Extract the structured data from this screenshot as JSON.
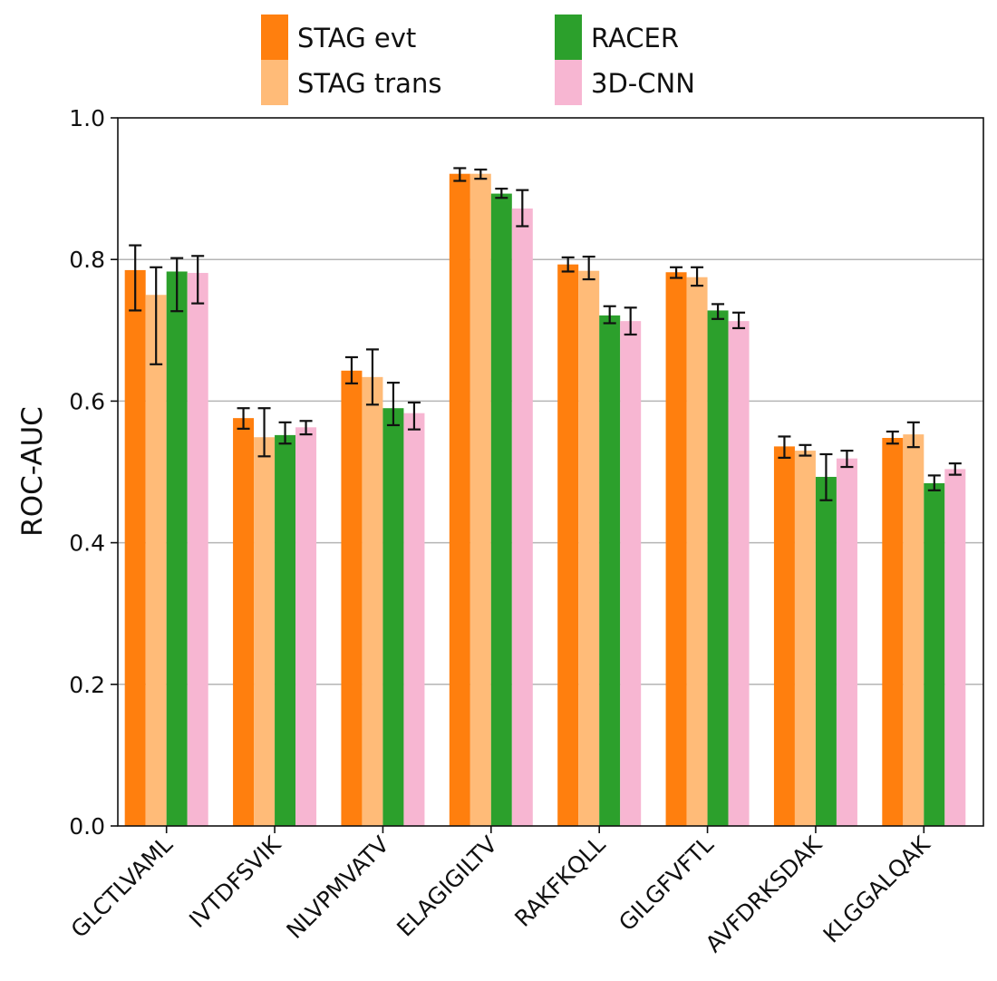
{
  "chart_data": {
    "type": "bar",
    "ylabel": "ROC-AUC",
    "xlabel": "",
    "title": "",
    "ylim": [
      0.0,
      1.0
    ],
    "yticks": [
      "0.0",
      "0.2",
      "0.4",
      "0.6",
      "0.8",
      "1.0"
    ],
    "grid": "horizontal",
    "legend_placement": "top-center, outside plot",
    "categories": [
      "GLCTLVAML",
      "IVTDFSVIK",
      "NLVPMVATV",
      "ELAGIGILTV",
      "RAKFKQLL",
      "GILGFVFTL",
      "AVFDRKSDAK",
      "KLGGALQAK"
    ],
    "series": [
      {
        "name": "STAG evt",
        "color": "#ff7f0e",
        "values": [
          0.785,
          0.576,
          0.643,
          0.921,
          0.793,
          0.782,
          0.536,
          0.548
        ],
        "error_low": [
          0.728,
          0.561,
          0.625,
          0.911,
          0.783,
          0.774,
          0.52,
          0.54
        ],
        "error_high": [
          0.82,
          0.59,
          0.662,
          0.929,
          0.803,
          0.789,
          0.55,
          0.557
        ]
      },
      {
        "name": "STAG trans",
        "color": "#ffbb78",
        "values": [
          0.75,
          0.549,
          0.634,
          0.921,
          0.784,
          0.775,
          0.53,
          0.553
        ],
        "error_low": [
          0.652,
          0.522,
          0.595,
          0.914,
          0.772,
          0.763,
          0.523,
          0.535
        ],
        "error_high": [
          0.789,
          0.59,
          0.673,
          0.927,
          0.804,
          0.789,
          0.538,
          0.57
        ]
      },
      {
        "name": "RACER",
        "color": "#2ca02c",
        "values": [
          0.783,
          0.552,
          0.59,
          0.893,
          0.721,
          0.728,
          0.493,
          0.484
        ],
        "error_low": [
          0.727,
          0.54,
          0.566,
          0.887,
          0.71,
          0.716,
          0.46,
          0.474
        ],
        "error_high": [
          0.802,
          0.57,
          0.626,
          0.9,
          0.734,
          0.737,
          0.525,
          0.495
        ]
      },
      {
        "name": "3D-CNN",
        "color": "#f7b6d2",
        "values": [
          0.781,
          0.563,
          0.583,
          0.872,
          0.713,
          0.713,
          0.519,
          0.504
        ],
        "error_low": [
          0.738,
          0.553,
          0.56,
          0.847,
          0.694,
          0.703,
          0.507,
          0.496
        ],
        "error_high": [
          0.805,
          0.572,
          0.598,
          0.898,
          0.732,
          0.725,
          0.53,
          0.512
        ]
      }
    ]
  }
}
